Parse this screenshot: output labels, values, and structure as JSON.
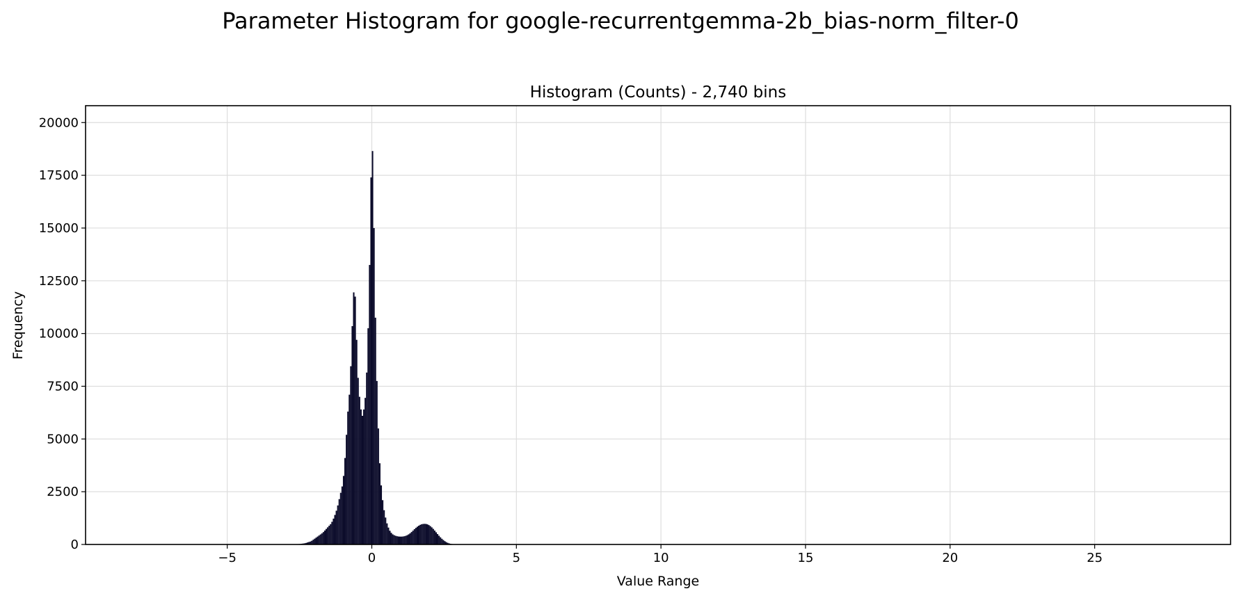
{
  "figure": {
    "suptitle": "Parameter Histogram for google-recurrentgemma-2b_bias-norm_filter-0"
  },
  "chart_data": {
    "type": "bar",
    "title": "Histogram (Counts) - 2,740 bins",
    "xlabel": "Value Range",
    "ylabel": "Frequency",
    "xlim": [
      -9.9,
      29.7
    ],
    "ylim": [
      0,
      20800
    ],
    "xticks": [
      -5,
      0,
      5,
      10,
      15,
      20,
      25
    ],
    "xtick_labels": [
      "−5",
      "0",
      "5",
      "10",
      "15",
      "20",
      "25"
    ],
    "yticks": [
      0,
      2500,
      5000,
      7500,
      10000,
      12500,
      15000,
      17500,
      20000
    ],
    "ytick_labels": [
      "0",
      "2500",
      "5000",
      "7500",
      "10000",
      "12500",
      "15000",
      "17500",
      "20000"
    ],
    "grid": true,
    "bar_color": "#0b0b2a",
    "bin_width": 0.05,
    "bins": [
      {
        "x": -3.0,
        "y": 0
      },
      {
        "x": -2.5,
        "y": 20
      },
      {
        "x": -2.3,
        "y": 60
      },
      {
        "x": -2.1,
        "y": 150
      },
      {
        "x": -2.0,
        "y": 250
      },
      {
        "x": -1.9,
        "y": 350
      },
      {
        "x": -1.8,
        "y": 450
      },
      {
        "x": -1.7,
        "y": 550
      },
      {
        "x": -1.6,
        "y": 700
      },
      {
        "x": -1.5,
        "y": 850
      },
      {
        "x": -1.4,
        "y": 1000
      },
      {
        "x": -1.3,
        "y": 1300
      },
      {
        "x": -1.2,
        "y": 1700
      },
      {
        "x": -1.1,
        "y": 2300
      },
      {
        "x": -1.0,
        "y": 2900
      },
      {
        "x": -0.95,
        "y": 3600
      },
      {
        "x": -0.9,
        "y": 4600
      },
      {
        "x": -0.85,
        "y": 5800
      },
      {
        "x": -0.8,
        "y": 6800
      },
      {
        "x": -0.75,
        "y": 7400
      },
      {
        "x": -0.7,
        "y": 9500
      },
      {
        "x": -0.65,
        "y": 11200
      },
      {
        "x": -0.6,
        "y": 12700
      },
      {
        "x": -0.55,
        "y": 10800
      },
      {
        "x": -0.5,
        "y": 8600
      },
      {
        "x": -0.45,
        "y": 7200
      },
      {
        "x": -0.4,
        "y": 6800
      },
      {
        "x": -0.35,
        "y": 6000
      },
      {
        "x": -0.3,
        "y": 6200
      },
      {
        "x": -0.25,
        "y": 6600
      },
      {
        "x": -0.2,
        "y": 7300
      },
      {
        "x": -0.15,
        "y": 9000
      },
      {
        "x": -0.1,
        "y": 11500
      },
      {
        "x": -0.05,
        "y": 15000
      },
      {
        "x": 0.0,
        "y": 19800
      },
      {
        "x": 0.05,
        "y": 17500
      },
      {
        "x": 0.1,
        "y": 12500
      },
      {
        "x": 0.15,
        "y": 9000
      },
      {
        "x": 0.2,
        "y": 6500
      },
      {
        "x": 0.25,
        "y": 4500
      },
      {
        "x": 0.3,
        "y": 3200
      },
      {
        "x": 0.35,
        "y": 2400
      },
      {
        "x": 0.4,
        "y": 1800
      },
      {
        "x": 0.5,
        "y": 1100
      },
      {
        "x": 0.6,
        "y": 700
      },
      {
        "x": 0.7,
        "y": 500
      },
      {
        "x": 0.8,
        "y": 420
      },
      {
        "x": 0.9,
        "y": 380
      },
      {
        "x": 1.0,
        "y": 370
      },
      {
        "x": 1.1,
        "y": 380
      },
      {
        "x": 1.2,
        "y": 420
      },
      {
        "x": 1.3,
        "y": 500
      },
      {
        "x": 1.4,
        "y": 620
      },
      {
        "x": 1.5,
        "y": 760
      },
      {
        "x": 1.6,
        "y": 870
      },
      {
        "x": 1.7,
        "y": 950
      },
      {
        "x": 1.8,
        "y": 980
      },
      {
        "x": 1.9,
        "y": 970
      },
      {
        "x": 2.0,
        "y": 900
      },
      {
        "x": 2.1,
        "y": 780
      },
      {
        "x": 2.2,
        "y": 620
      },
      {
        "x": 2.3,
        "y": 450
      },
      {
        "x": 2.4,
        "y": 300
      },
      {
        "x": 2.5,
        "y": 180
      },
      {
        "x": 2.6,
        "y": 90
      },
      {
        "x": 2.7,
        "y": 40
      },
      {
        "x": 2.8,
        "y": 15
      },
      {
        "x": 3.0,
        "y": 0
      }
    ]
  }
}
